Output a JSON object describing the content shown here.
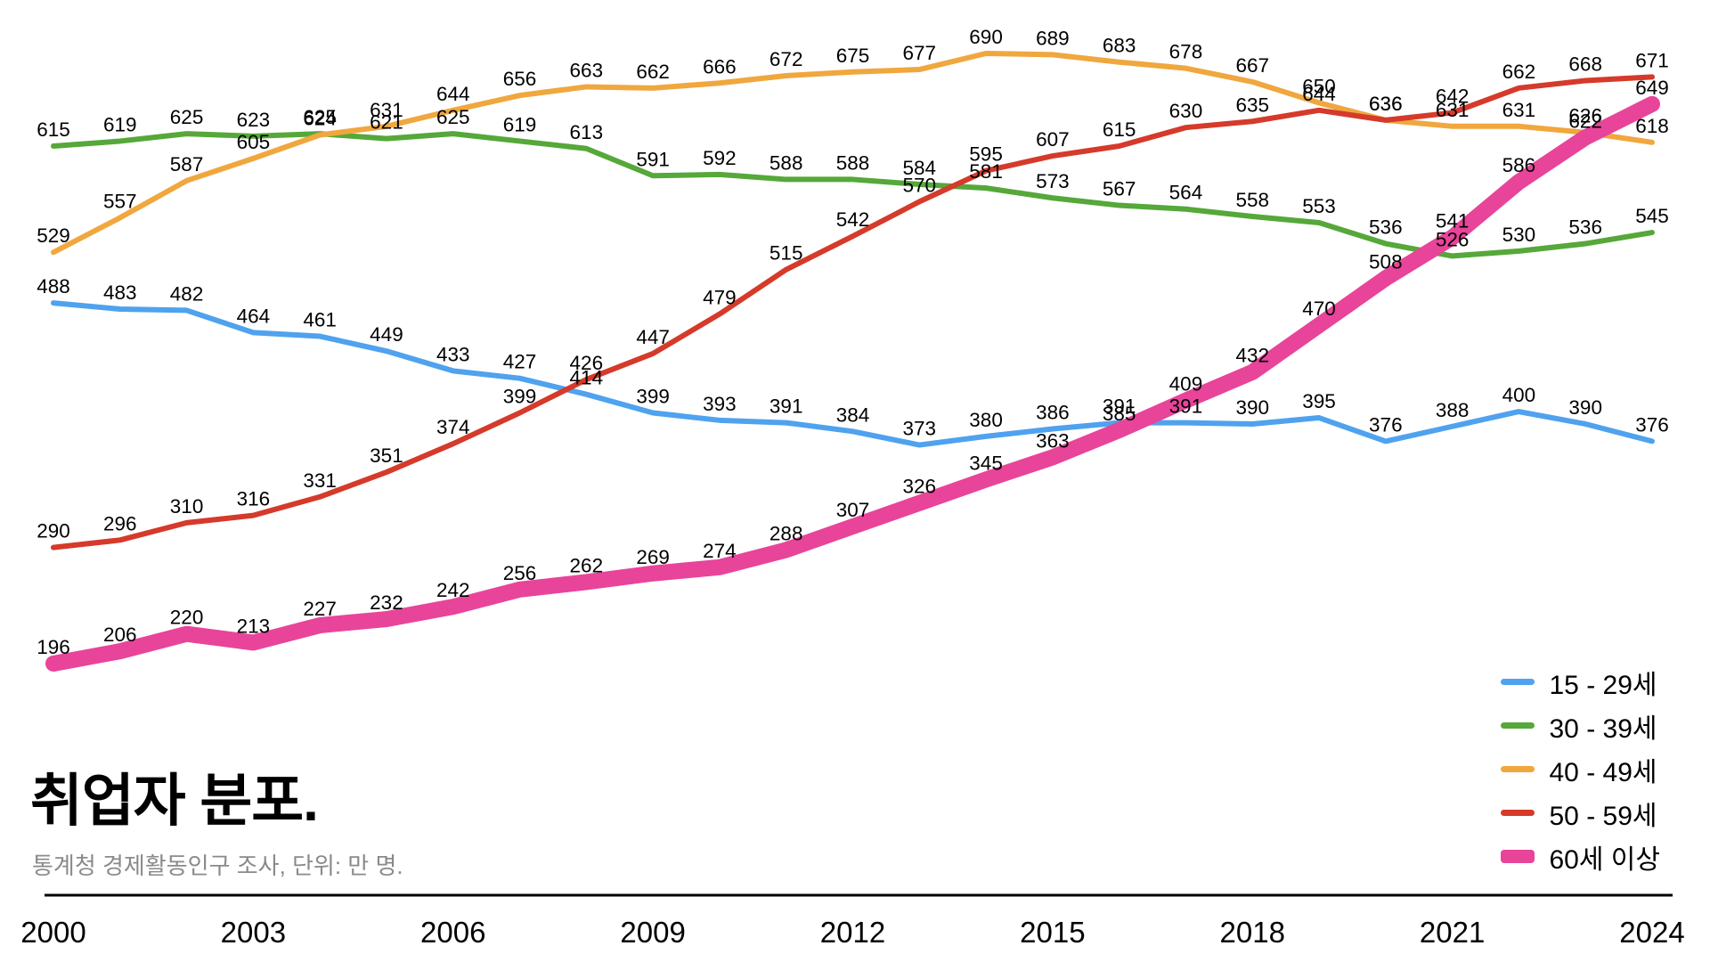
{
  "chart_data": {
    "type": "line",
    "title": "취업자 분포.",
    "subtitle": "통계청 경제활동인구 조사, 단위: 만 명.",
    "source": "통계청 경제활동인구 조사",
    "unit": "만 명",
    "grid": false,
    "legend_position": "bottom-right",
    "value_labels_on_every_point": true,
    "x": [
      2000,
      2001,
      2002,
      2003,
      2004,
      2005,
      2006,
      2007,
      2008,
      2009,
      2010,
      2011,
      2012,
      2013,
      2014,
      2015,
      2016,
      2017,
      2018,
      2019,
      2020,
      2021,
      2022,
      2023,
      2024
    ],
    "x_tick_labels": [
      "2000",
      "2003",
      "2006",
      "2009",
      "2012",
      "2015",
      "2018",
      "2021",
      "2024"
    ],
    "x_ticks": [
      2000,
      2003,
      2006,
      2009,
      2012,
      2015,
      2018,
      2021,
      2024
    ],
    "ylim": [
      170,
      710
    ],
    "series": [
      {
        "name": "15 - 29세",
        "color": "#4FA2EE",
        "line_width": 6,
        "values": [
          488,
          483,
          482,
          464,
          461,
          449,
          433,
          427,
          414,
          399,
          393,
          391,
          384,
          373,
          380,
          386,
          391,
          391,
          390,
          395,
          376,
          388,
          400,
          390,
          376
        ]
      },
      {
        "name": "30 - 39세",
        "color": "#55A839",
        "line_width": 6,
        "values": [
          615,
          619,
          625,
          623,
          625,
          621,
          625,
          619,
          613,
          591,
          592,
          588,
          588,
          584,
          581,
          573,
          567,
          564,
          558,
          553,
          536,
          526,
          530,
          536,
          545
        ]
      },
      {
        "name": "40 - 49세",
        "color": "#F0A73E",
        "line_width": 6,
        "values": [
          529,
          557,
          587,
          605,
          624,
          631,
          644,
          656,
          663,
          662,
          666,
          672,
          675,
          677,
          690,
          689,
          683,
          678,
          667,
          650,
          636,
          631,
          631,
          626,
          618
        ]
      },
      {
        "name": "50 - 59세",
        "color": "#D53A2A",
        "line_width": 6,
        "values": [
          290,
          296,
          310,
          316,
          331,
          351,
          374,
          399,
          426,
          447,
          479,
          515,
          542,
          570,
          595,
          607,
          615,
          630,
          635,
          644,
          636,
          642,
          662,
          668,
          671
        ]
      },
      {
        "name": "60세 이상",
        "color": "#E8449A",
        "line_width": 18,
        "values": [
          196,
          206,
          220,
          213,
          227,
          232,
          242,
          256,
          262,
          269,
          274,
          288,
          307,
          326,
          345,
          363,
          385,
          409,
          432,
          470,
          508,
          541,
          586,
          622,
          649
        ]
      }
    ]
  }
}
